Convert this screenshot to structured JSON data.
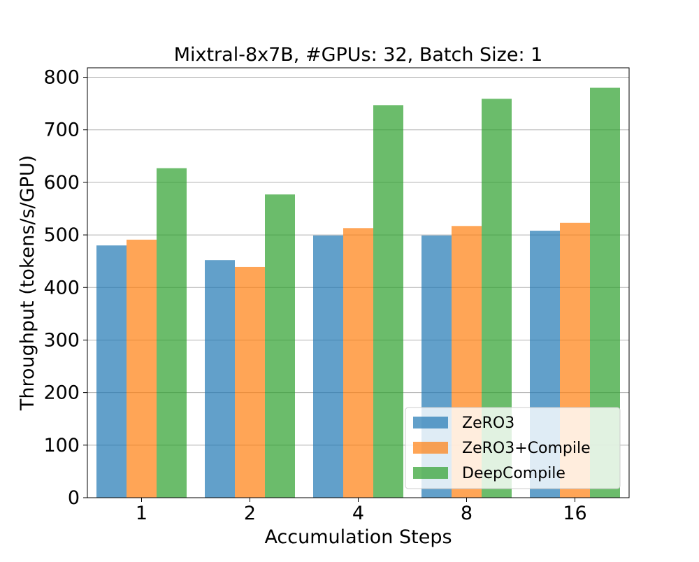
{
  "chart_data": {
    "type": "bar",
    "title": "Mixtral-8x7B, #GPUs: 32, Batch Size: 1",
    "xlabel": "Accumulation Steps",
    "ylabel": "Throughput (tokens/s/GPU)",
    "categories": [
      "1",
      "2",
      "4",
      "8",
      "16"
    ],
    "ylim": [
      0,
      818
    ],
    "yticks": [
      0,
      100,
      200,
      300,
      400,
      500,
      600,
      700,
      800
    ],
    "grid": "horizontal",
    "legend_position": "lower-right",
    "series": [
      {
        "name": "ZeRO3",
        "color": "#1f77b4",
        "values": [
          480,
          452,
          499,
          499,
          508
        ]
      },
      {
        "name": "ZeRO3+Compile",
        "color": "#ff7f0e",
        "values": [
          491,
          439,
          513,
          517,
          523
        ]
      },
      {
        "name": "DeepCompile",
        "color": "#2ca02c",
        "values": [
          627,
          577,
          747,
          759,
          780
        ]
      }
    ]
  }
}
